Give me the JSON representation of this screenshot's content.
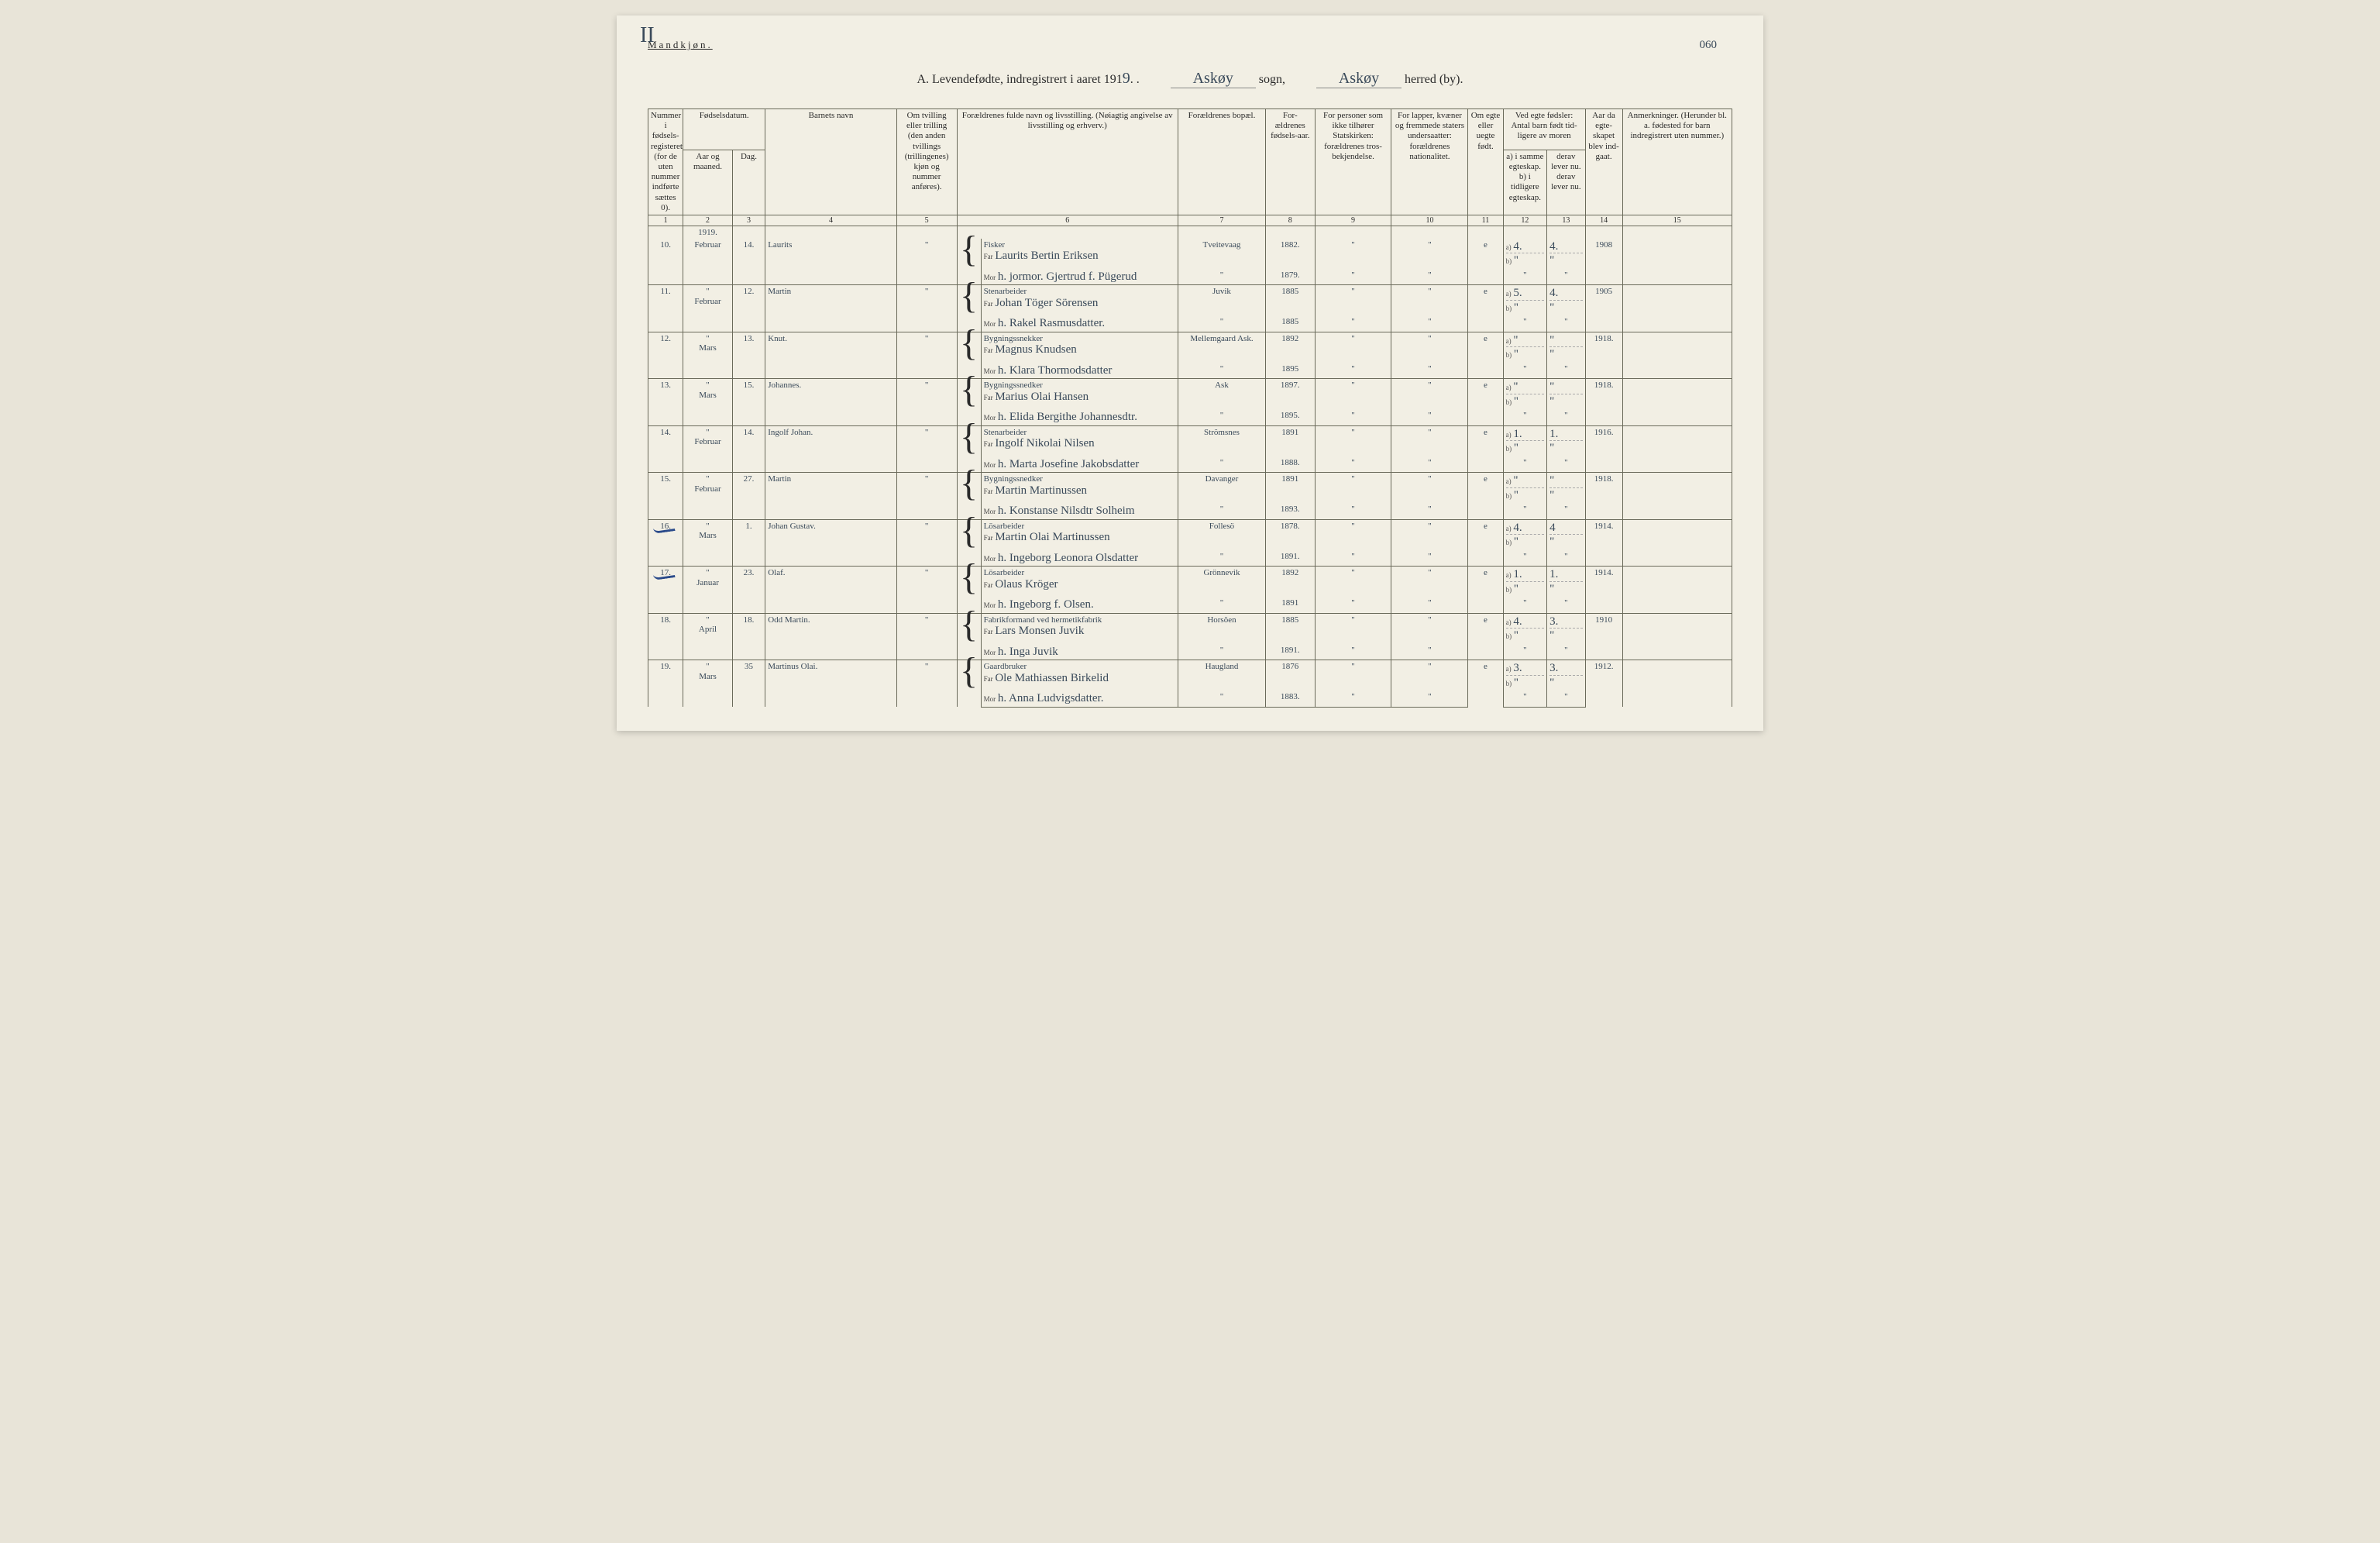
{
  "page": {
    "corner_mark": "II",
    "page_number": "060",
    "gender_label": "Mandkjøn.",
    "title_prefix": "A. Levendefødte, indregistrert i aaret 191",
    "year_suffix": "9",
    "sogn_label": "sogn,",
    "sogn_value": "Askøy",
    "herred_label": "herred (by).",
    "herred_value": "Askøy"
  },
  "headers": {
    "col1": "Nummer i fødsels-registeret (for de uten nummer indførte sættes 0).",
    "col2_3_group": "Fødselsdatum.",
    "col2": "Aar og maaned.",
    "col3": "Dag.",
    "col4": "Barnets navn",
    "col5": "Om tvilling eller trilling (den anden tvillings (trillingenes) kjøn og nummer anføres).",
    "col6": "Forældrenes fulde navn og livsstilling. (Nøiagtig angivelse av livsstilling og erhverv.)",
    "col7": "Forældrenes bopæl.",
    "col8": "For-ældrenes fødsels-aar.",
    "col9": "For personer som ikke tilhører Statskirken: forældrenes tros-bekjendelse.",
    "col10": "For lapper, kvæner og fremmede staters undersaatter: forældrenes nationalitet.",
    "col11": "Om egte eller uegte født.",
    "col12_13_group": "Ved egte fødsler: Antal barn født tid-ligere av moren",
    "col12": "a) i samme egteskap. b) i tidligere egteskap.",
    "col13": "derav lever nu. derav lever nu.",
    "col14": "Aar da egte-skapet blev ind-gaat.",
    "col15": "Anmerkninger. (Herunder bl. a. fødested for barn indregistrert uten nummer.)",
    "nums": [
      "1",
      "2",
      "3",
      "4",
      "5",
      "6",
      "7",
      "8",
      "9",
      "10",
      "11",
      "12",
      "13",
      "14",
      "15"
    ],
    "far": "Far",
    "mor": "Mor"
  },
  "year_line": "1919.",
  "rows": [
    {
      "n": "10.",
      "mon": "Februar",
      "day": "14.",
      "name": "Laurits",
      "twin": "\"",
      "occ": "Fisker",
      "far": "Laurits Bertin Eriksen",
      "mor": "h. jormor. Gjertrud f. Pügerud",
      "place": "Tveitevaag",
      "place2": "\"",
      "fy": "1882.",
      "my": "1879.",
      "c9": "\"",
      "c10": "\"",
      "legit": "e",
      "a12": "4.",
      "b12": "\"",
      "a13": "4.",
      "b13": "\"",
      "yr": "1908",
      "note": ""
    },
    {
      "n": "11.",
      "mon": "Februar",
      "day": "12.",
      "name": "Martin",
      "twin": "\"",
      "occ": "Stenarbeider",
      "far": "Johan Töger Sörensen",
      "mor": "h. Rakel Rasmusdatter.",
      "place": "Juvik",
      "place2": "\"",
      "fy": "1885",
      "my": "1885",
      "c9": "\"",
      "c10": "\"",
      "legit": "e",
      "a12": "5.",
      "b12": "\"",
      "a13": "4.",
      "b13": "\"",
      "yr": "1905",
      "note": ""
    },
    {
      "n": "12.",
      "mon": "Mars",
      "day": "13.",
      "name": "Knut.",
      "twin": "\"",
      "occ": "Bygningssnekker",
      "far": "Magnus Knudsen",
      "mor": "h. Klara Thormodsdatter",
      "place": "Mellemgaard Ask.",
      "place2": "\"",
      "fy": "1892",
      "my": "1895",
      "c9": "\"",
      "c10": "\"",
      "legit": "e",
      "a12": "\"",
      "b12": "\"",
      "a13": "\"",
      "b13": "\"",
      "yr": "1918.",
      "note": ""
    },
    {
      "n": "13.",
      "mon": "Mars",
      "day": "15.",
      "name": "Johannes.",
      "twin": "\"",
      "occ": "Bygningssnedker",
      "far": "Marius Olai Hansen",
      "mor": "h. Elida Bergithe Johannesdtr.",
      "place": "Ask",
      "place2": "\"",
      "fy": "1897.",
      "my": "1895.",
      "c9": "\"",
      "c10": "\"",
      "legit": "e",
      "a12": "\"",
      "b12": "\"",
      "a13": "\"",
      "b13": "\"",
      "yr": "1918.",
      "note": ""
    },
    {
      "n": "14.",
      "mon": "Februar",
      "day": "14.",
      "name": "Ingolf Johan.",
      "twin": "\"",
      "occ": "Stenarbeider",
      "far": "Ingolf Nikolai Nilsen",
      "mor": "h. Marta Josefine Jakobsdatter",
      "place": "Strömsnes",
      "place2": "\"",
      "fy": "1891",
      "my": "1888.",
      "c9": "\"",
      "c10": "\"",
      "legit": "e",
      "a12": "1.",
      "b12": "\"",
      "a13": "1.",
      "b13": "\"",
      "yr": "1916.",
      "note": ""
    },
    {
      "n": "15.",
      "mon": "Februar",
      "day": "27.",
      "name": "Martin",
      "twin": "\"",
      "occ": "Bygningssnedker",
      "far": "Martin Martinussen",
      "mor": "h. Konstanse Nilsdtr Solheim",
      "place": "Davanger",
      "place2": "\"",
      "fy": "1891",
      "my": "1893.",
      "c9": "\"",
      "c10": "\"",
      "legit": "e",
      "a12": "\"",
      "b12": "\"",
      "a13": "\"",
      "b13": "\"",
      "yr": "1918.",
      "note": ""
    },
    {
      "n": "16.",
      "mon": "Mars",
      "day": "1.",
      "name": "Johan Gustav.",
      "twin": "\"",
      "occ": "Lösarbeider",
      "far": "Martin Olai Martinussen",
      "mor": "h. Ingeborg Leonora Olsdatter",
      "place": "Follesö",
      "place2": "\"",
      "fy": "1878.",
      "my": "1891.",
      "c9": "\"",
      "c10": "\"",
      "legit": "e",
      "a12": "4.",
      "b12": "\"",
      "a13": "4",
      "b13": "\"",
      "yr": "1914.",
      "note": "",
      "tick": true
    },
    {
      "n": "17.",
      "mon": "Januar",
      "day": "23.",
      "name": "Olaf.",
      "twin": "\"",
      "occ": "Lösarbeider",
      "far": "Olaus Kröger",
      "mor": "h. Ingeborg f. Olsen.",
      "place": "Grönnevik",
      "place2": "\"",
      "fy": "1892",
      "my": "1891",
      "c9": "\"",
      "c10": "\"",
      "legit": "e",
      "a12": "1.",
      "b12": "\"",
      "a13": "1.",
      "b13": "\"",
      "yr": "1914.",
      "note": "",
      "tick": true
    },
    {
      "n": "18.",
      "mon": "April",
      "day": "18.",
      "name": "Odd Martin.",
      "twin": "\"",
      "occ": "Fabrikformand ved hermetikfabrik",
      "far": "Lars Monsen Juvik",
      "mor": "h. Inga Juvik",
      "place": "Horsöen",
      "place2": "\"",
      "fy": "1885",
      "my": "1891.",
      "c9": "\"",
      "c10": "\"",
      "legit": "e",
      "a12": "4.",
      "b12": "\"",
      "a13": "3.",
      "b13": "\"",
      "yr": "1910",
      "note": ""
    },
    {
      "n": "19.",
      "mon": "Mars",
      "day": "35",
      "name": "Martinus Olai.",
      "twin": "\"",
      "occ": "Gaardbruker",
      "far": "Ole Mathiassen Birkelid",
      "mor": "h. Anna Ludvigsdatter.",
      "place": "Haugland",
      "place2": "\"",
      "fy": "1876",
      "my": "1883.",
      "c9": "\"",
      "c10": "\"",
      "legit": "e",
      "a12": "3.",
      "b12": "\"",
      "a13": "3.",
      "b13": "\"",
      "yr": "1912.",
      "note": ""
    }
  ]
}
